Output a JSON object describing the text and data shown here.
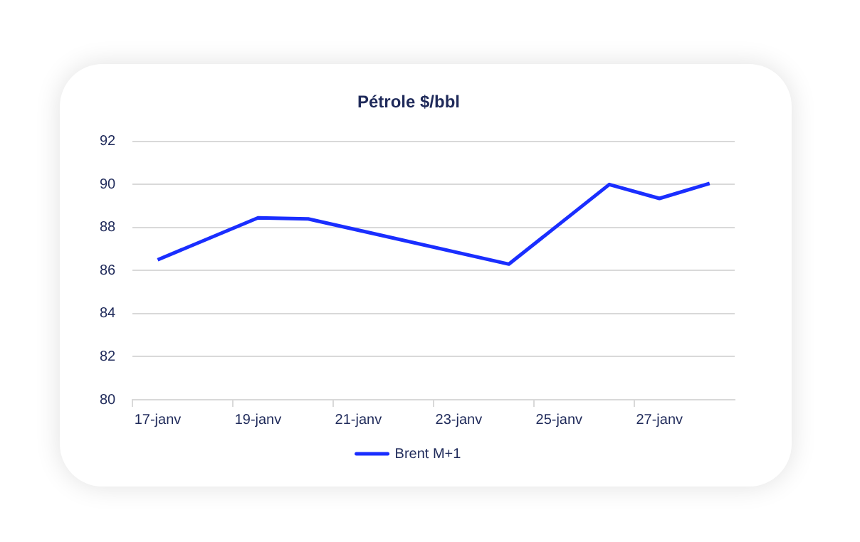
{
  "chart_data": {
    "type": "line",
    "title": "Pétrole $/bbl",
    "categories": [
      "17-janv",
      null,
      "19-janv",
      null,
      "21-janv",
      null,
      "23-janv",
      null,
      "25-janv",
      null,
      "27-janv",
      null
    ],
    "series": [
      {
        "name": "Brent M+1",
        "color": "#1a2eff",
        "values": [
          86.5,
          null,
          88.45,
          88.4,
          null,
          null,
          null,
          86.3,
          null,
          90.0,
          89.35,
          90.05
        ]
      }
    ],
    "ylim": [
      80,
      92
    ],
    "yticks": [
      80,
      82,
      84,
      86,
      88,
      90,
      92
    ],
    "grid": "y",
    "legend": "bottom",
    "marker": "none"
  }
}
